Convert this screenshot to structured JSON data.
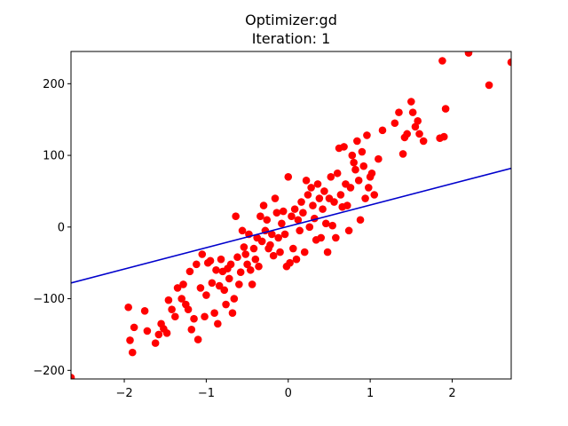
{
  "chart_data": {
    "type": "scatter",
    "title_line1": "Optimizer:gd",
    "title_line2": "Iteration: 1",
    "xlabel": "",
    "ylabel": "",
    "xlim": [
      -2.65,
      2.72
    ],
    "ylim": [
      -212,
      245
    ],
    "xticks": [
      -2,
      -1,
      0,
      1,
      2
    ],
    "yticks": [
      -200,
      -100,
      0,
      100,
      200
    ],
    "xtick_labels": [
      "−2",
      "−1",
      "0",
      "1",
      "2"
    ],
    "ytick_labels": [
      "−200",
      "−100",
      "0",
      "100",
      "200"
    ],
    "grid": false,
    "colors": {
      "points": "#ff0000",
      "line": "#0000cc",
      "axes": "#000000"
    },
    "line": {
      "x": [
        -2.65,
        2.72
      ],
      "y": [
        -78,
        82
      ]
    },
    "points": [
      [
        -2.65,
        -210
      ],
      [
        -1.95,
        -112
      ],
      [
        -1.93,
        -158
      ],
      [
        -1.9,
        -175
      ],
      [
        -1.88,
        -140
      ],
      [
        -1.75,
        -117
      ],
      [
        -1.72,
        -145
      ],
      [
        -1.62,
        -162
      ],
      [
        -1.58,
        -150
      ],
      [
        -1.55,
        -135
      ],
      [
        -1.52,
        -142
      ],
      [
        -1.48,
        -148
      ],
      [
        -1.46,
        -102
      ],
      [
        -1.42,
        -115
      ],
      [
        -1.38,
        -125
      ],
      [
        -1.35,
        -85
      ],
      [
        -1.3,
        -100
      ],
      [
        -1.28,
        -80
      ],
      [
        -1.25,
        -108
      ],
      [
        -1.22,
        -115
      ],
      [
        -1.2,
        -62
      ],
      [
        -1.18,
        -143
      ],
      [
        -1.15,
        -128
      ],
      [
        -1.12,
        -52
      ],
      [
        -1.1,
        -157
      ],
      [
        -1.07,
        -85
      ],
      [
        -1.05,
        -38
      ],
      [
        -1.02,
        -125
      ],
      [
        -1,
        -95
      ],
      [
        -0.98,
        -50
      ],
      [
        -0.95,
        -47
      ],
      [
        -0.93,
        -78
      ],
      [
        -0.9,
        -120
      ],
      [
        -0.88,
        -60
      ],
      [
        -0.86,
        -135
      ],
      [
        -0.84,
        -82
      ],
      [
        -0.82,
        -45
      ],
      [
        -0.8,
        -62
      ],
      [
        -0.78,
        -88
      ],
      [
        -0.76,
        -108
      ],
      [
        -0.74,
        -58
      ],
      [
        -0.72,
        -72
      ],
      [
        -0.7,
        -52
      ],
      [
        -0.68,
        -120
      ],
      [
        -0.66,
        -100
      ],
      [
        -0.64,
        15
      ],
      [
        -0.62,
        -42
      ],
      [
        -0.6,
        -80
      ],
      [
        -0.58,
        -63
      ],
      [
        -0.56,
        -5
      ],
      [
        -0.54,
        -28
      ],
      [
        -0.52,
        -38
      ],
      [
        -0.5,
        -52
      ],
      [
        -0.48,
        -10
      ],
      [
        -0.46,
        -60
      ],
      [
        -0.44,
        -80
      ],
      [
        -0.42,
        -30
      ],
      [
        -0.4,
        -45
      ],
      [
        -0.38,
        -15
      ],
      [
        -0.36,
        -55
      ],
      [
        -0.34,
        15
      ],
      [
        -0.32,
        -20
      ],
      [
        -0.3,
        30
      ],
      [
        -0.28,
        -5
      ],
      [
        -0.26,
        10
      ],
      [
        -0.24,
        -30
      ],
      [
        -0.22,
        -25
      ],
      [
        -0.2,
        -10
      ],
      [
        -0.18,
        -40
      ],
      [
        -0.16,
        40
      ],
      [
        -0.14,
        20
      ],
      [
        -0.12,
        -15
      ],
      [
        -0.1,
        -35
      ],
      [
        -0.08,
        5
      ],
      [
        -0.06,
        22
      ],
      [
        -0.04,
        -10
      ],
      [
        -0.02,
        -55
      ],
      [
        0,
        70
      ],
      [
        0.02,
        -50
      ],
      [
        0.04,
        15
      ],
      [
        0.06,
        -30
      ],
      [
        0.08,
        25
      ],
      [
        0.1,
        -45
      ],
      [
        0.12,
        10
      ],
      [
        0.14,
        -5
      ],
      [
        0.16,
        35
      ],
      [
        0.18,
        20
      ],
      [
        0.2,
        -35
      ],
      [
        0.22,
        65
      ],
      [
        0.24,
        45
      ],
      [
        0.26,
        0
      ],
      [
        0.28,
        55
      ],
      [
        0.3,
        30
      ],
      [
        0.32,
        12
      ],
      [
        0.34,
        -18
      ],
      [
        0.36,
        60
      ],
      [
        0.38,
        40
      ],
      [
        0.4,
        -15
      ],
      [
        0.42,
        25
      ],
      [
        0.44,
        50
      ],
      [
        0.46,
        5
      ],
      [
        0.48,
        -35
      ],
      [
        0.5,
        40
      ],
      [
        0.52,
        70
      ],
      [
        0.54,
        2
      ],
      [
        0.56,
        35
      ],
      [
        0.58,
        -15
      ],
      [
        0.6,
        75
      ],
      [
        0.62,
        110
      ],
      [
        0.64,
        45
      ],
      [
        0.66,
        28
      ],
      [
        0.68,
        112
      ],
      [
        0.7,
        60
      ],
      [
        0.72,
        30
      ],
      [
        0.74,
        -5
      ],
      [
        0.76,
        55
      ],
      [
        0.78,
        100
      ],
      [
        0.8,
        90
      ],
      [
        0.82,
        80
      ],
      [
        0.84,
        120
      ],
      [
        0.86,
        65
      ],
      [
        0.88,
        10
      ],
      [
        0.9,
        105
      ],
      [
        0.92,
        85
      ],
      [
        0.94,
        40
      ],
      [
        0.96,
        128
      ],
      [
        0.98,
        55
      ],
      [
        1,
        70
      ],
      [
        1.02,
        75
      ],
      [
        1.05,
        45
      ],
      [
        1.1,
        95
      ],
      [
        1.15,
        135
      ],
      [
        1.3,
        145
      ],
      [
        1.35,
        160
      ],
      [
        1.4,
        102
      ],
      [
        1.42,
        125
      ],
      [
        1.45,
        130
      ],
      [
        1.5,
        175
      ],
      [
        1.52,
        160
      ],
      [
        1.55,
        140
      ],
      [
        1.58,
        148
      ],
      [
        1.6,
        130
      ],
      [
        1.65,
        120
      ],
      [
        1.85,
        124
      ],
      [
        1.88,
        232
      ],
      [
        1.9,
        126
      ],
      [
        1.92,
        165
      ],
      [
        2.2,
        243
      ],
      [
        2.45,
        198
      ],
      [
        2.72,
        230
      ]
    ]
  }
}
